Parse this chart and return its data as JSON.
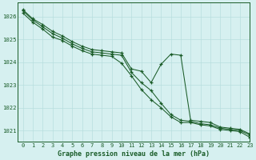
{
  "title": "Graphe pression niveau de la mer (hPa)",
  "background_color": "#d6f0f0",
  "grid_color": "#b8dede",
  "line_color": "#1a5c28",
  "xlim": [
    -0.5,
    23
  ],
  "ylim": [
    1020.5,
    1026.6
  ],
  "yticks": [
    1021,
    1022,
    1023,
    1024,
    1025,
    1026
  ],
  "xticks": [
    0,
    1,
    2,
    3,
    4,
    5,
    6,
    7,
    8,
    9,
    10,
    11,
    12,
    13,
    14,
    15,
    16,
    17,
    18,
    19,
    20,
    21,
    22,
    23
  ],
  "series1": [
    1026.3,
    1025.9,
    1025.65,
    1025.35,
    1025.15,
    1024.9,
    1024.7,
    1024.55,
    1024.5,
    1024.45,
    1024.4,
    1023.7,
    1023.6,
    1023.1,
    1023.9,
    1024.35,
    1024.3,
    1021.45,
    1021.4,
    1021.35,
    1021.15,
    1021.1,
    1021.05,
    1020.85
  ],
  "series2": [
    1026.25,
    1025.85,
    1025.55,
    1025.25,
    1025.05,
    1024.8,
    1024.6,
    1024.45,
    1024.4,
    1024.35,
    1024.3,
    1023.55,
    1023.1,
    1022.75,
    1022.2,
    1021.7,
    1021.45,
    1021.4,
    1021.3,
    1021.25,
    1021.1,
    1021.05,
    1021.0,
    1020.8
  ],
  "series3": [
    1026.15,
    1025.75,
    1025.45,
    1025.1,
    1024.95,
    1024.7,
    1024.5,
    1024.35,
    1024.3,
    1024.25,
    1023.95,
    1023.4,
    1022.8,
    1022.35,
    1022.0,
    1021.6,
    1021.35,
    1021.35,
    1021.25,
    1021.2,
    1021.05,
    1021.0,
    1020.95,
    1020.7
  ]
}
